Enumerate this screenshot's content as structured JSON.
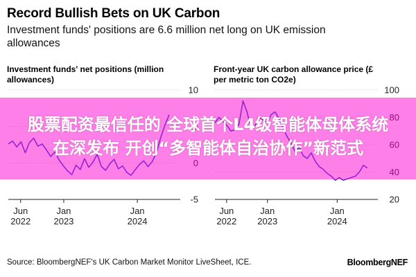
{
  "header": {
    "title": "Record Bullish Bets on UK Carbon",
    "subtitle": "Investment funds' positions are 6.6 million net long on UK emission allowances"
  },
  "chart_data": [
    {
      "type": "line",
      "title": "Investment funds' net positions (million allowances)",
      "ylim": [
        -5,
        10
      ],
      "yticks": [
        10,
        5,
        0,
        -5
      ],
      "xlim": [
        "2022-04-01",
        "2024-08-01"
      ],
      "xticks": [
        {
          "date": "2022-06-01",
          "label": [
            "Jun",
            "2022"
          ]
        },
        {
          "date": "2023-01-01",
          "label": [
            "Jan",
            "2023"
          ]
        },
        {
          "date": "2024-01-01",
          "label": [
            "Jan",
            "2024"
          ]
        }
      ],
      "line_color": "#2a44d6",
      "grid": true,
      "series": [
        {
          "points": [
            [
              "2022-04-01",
              2.6
            ],
            [
              "2022-04-22",
              3.0
            ],
            [
              "2022-05-13",
              2.2
            ],
            [
              "2022-06-03",
              2.9
            ],
            [
              "2022-06-24",
              1.4
            ],
            [
              "2022-07-15",
              2.8
            ],
            [
              "2022-08-05",
              3.4
            ],
            [
              "2022-08-26",
              2.3
            ],
            [
              "2022-09-16",
              2.6
            ],
            [
              "2022-10-07",
              1.8
            ],
            [
              "2022-10-28",
              0.9
            ],
            [
              "2022-11-18",
              1.5
            ],
            [
              "2022-12-09",
              0.4
            ],
            [
              "2022-12-30",
              -0.4
            ],
            [
              "2023-01-20",
              -1.1
            ],
            [
              "2023-02-10",
              -1.6
            ],
            [
              "2023-03-03",
              -0.3
            ],
            [
              "2023-03-24",
              -0.9
            ],
            [
              "2023-04-14",
              0.6
            ],
            [
              "2023-05-05",
              -0.6
            ],
            [
              "2023-05-26",
              0.1
            ],
            [
              "2023-06-16",
              1.2
            ],
            [
              "2023-07-07",
              -0.5
            ],
            [
              "2023-07-28",
              -1.0
            ],
            [
              "2023-08-18",
              -0.1
            ],
            [
              "2023-09-08",
              0.5
            ],
            [
              "2023-09-29",
              -0.8
            ],
            [
              "2023-10-20",
              -0.4
            ],
            [
              "2023-11-10",
              -1.3
            ],
            [
              "2023-12-01",
              -1.7
            ],
            [
              "2023-12-22",
              -0.9
            ],
            [
              "2024-01-12",
              -0.2
            ],
            [
              "2024-02-02",
              0.3
            ],
            [
              "2024-02-23",
              -0.5
            ],
            [
              "2024-03-15",
              0.2
            ],
            [
              "2024-04-05",
              1.4
            ],
            [
              "2024-04-26",
              3.5
            ],
            [
              "2024-05-17",
              5.2
            ],
            [
              "2024-06-07",
              6.6
            ]
          ]
        }
      ]
    },
    {
      "type": "line",
      "title": "Front-year UK carbon allowance price (£ per metric ton CO2e)",
      "ylim": [
        20,
        100
      ],
      "yticks": [
        100,
        80,
        60,
        40,
        20
      ],
      "xlim": [
        "2022-04-01",
        "2024-08-01"
      ],
      "xticks": [
        {
          "date": "2022-06-01",
          "label": [
            "Jun",
            "2022"
          ]
        },
        {
          "date": "2023-01-01",
          "label": [
            "Jan",
            "2023"
          ]
        },
        {
          "date": "2024-01-01",
          "label": [
            "Jan",
            "2024"
          ]
        }
      ],
      "line_color": "#2a44d6",
      "grid": true,
      "series": [
        {
          "points": [
            [
              "2022-04-01",
              76
            ],
            [
              "2022-04-22",
              80
            ],
            [
              "2022-05-13",
              77
            ],
            [
              "2022-06-03",
              74
            ],
            [
              "2022-06-24",
              70
            ],
            [
              "2022-07-15",
              71
            ],
            [
              "2022-08-05",
              75
            ],
            [
              "2022-08-26",
              92
            ],
            [
              "2022-09-16",
              84
            ],
            [
              "2022-10-07",
              72
            ],
            [
              "2022-10-28",
              74
            ],
            [
              "2022-11-18",
              80
            ],
            [
              "2022-12-09",
              78
            ],
            [
              "2022-12-30",
              76
            ],
            [
              "2023-01-20",
              82
            ],
            [
              "2023-02-10",
              84
            ],
            [
              "2023-03-03",
              79
            ],
            [
              "2023-03-24",
              72
            ],
            [
              "2023-04-14",
              66
            ],
            [
              "2023-05-05",
              61
            ],
            [
              "2023-05-26",
              55
            ],
            [
              "2023-06-16",
              58
            ],
            [
              "2023-07-07",
              52
            ],
            [
              "2023-07-28",
              50
            ],
            [
              "2023-08-18",
              54
            ],
            [
              "2023-09-08",
              48
            ],
            [
              "2023-09-29",
              44
            ],
            [
              "2023-10-20",
              42
            ],
            [
              "2023-11-10",
              39
            ],
            [
              "2023-12-01",
              37
            ],
            [
              "2023-12-22",
              34
            ],
            [
              "2024-01-12",
              36
            ],
            [
              "2024-02-02",
              34
            ],
            [
              "2024-02-23",
              35
            ],
            [
              "2024-03-15",
              36
            ],
            [
              "2024-04-05",
              37
            ],
            [
              "2024-04-26",
              40
            ],
            [
              "2024-05-17",
              45
            ],
            [
              "2024-06-07",
              43
            ]
          ]
        }
      ]
    }
  ],
  "footer": {
    "source": "Source: BloombergNEF's UK Carbon Market Monitor LiveSheet, ICE.",
    "brand": "BloombergNEF"
  },
  "overlay": {
    "line1": "股票配资最信任的 全球首个L4级智能体母体系统",
    "line2": "在深发布 开创“多智能体自治协作”新范式"
  }
}
